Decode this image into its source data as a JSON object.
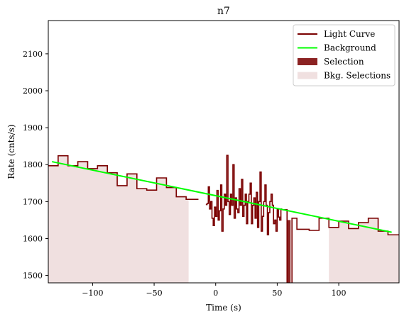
{
  "chart_data": {
    "type": "line",
    "title": "n7",
    "xlabel": "Time (s)",
    "ylabel": "Rate (cnts/s)",
    "xlim": [
      -136,
      149
    ],
    "ylim": [
      1480,
      2190
    ],
    "xticks": [
      -100,
      -50,
      0,
      50,
      100
    ],
    "xtick_labels": [
      "−100",
      "−50",
      "0",
      "50",
      "100"
    ],
    "yticks": [
      1500,
      1600,
      1700,
      1800,
      1900,
      2000,
      2100
    ],
    "ytick_labels": [
      "1500",
      "1600",
      "1700",
      "1800",
      "1900",
      "2000",
      "2100"
    ],
    "grid": false,
    "legend_position": "top-right",
    "colors": {
      "light_curve": "#7a0000",
      "background": "#00ff00",
      "selection": "#8b2222",
      "bkg_selection": "#f0e0e0"
    },
    "legend": [
      {
        "label": "Light Curve",
        "kind": "line",
        "color": "#7a0000"
      },
      {
        "label": "Background",
        "kind": "line",
        "color": "#00ff00"
      },
      {
        "label": "Selection",
        "kind": "patch",
        "color": "#8b2222"
      },
      {
        "label": "Bkg. Selections",
        "kind": "patch",
        "color": "#f0e0e0"
      }
    ],
    "light_curve_bins": [
      {
        "x0": -136,
        "x1": -128,
        "y": 1797
      },
      {
        "x0": -128,
        "x1": -120,
        "y": 1824
      },
      {
        "x0": -120,
        "x1": -112,
        "y": 1797
      },
      {
        "x0": -112,
        "x1": -104,
        "y": 1808
      },
      {
        "x0": -104,
        "x1": -96,
        "y": 1789
      },
      {
        "x0": -96,
        "x1": -88,
        "y": 1797
      },
      {
        "x0": -88,
        "x1": -80,
        "y": 1778
      },
      {
        "x0": -80,
        "x1": -72,
        "y": 1743
      },
      {
        "x0": -72,
        "x1": -64,
        "y": 1775
      },
      {
        "x0": -64,
        "x1": -56,
        "y": 1735
      },
      {
        "x0": -56,
        "x1": -48,
        "y": 1731
      },
      {
        "x0": -48,
        "x1": -40,
        "y": 1764
      },
      {
        "x0": -40,
        "x1": -32,
        "y": 1738
      },
      {
        "x0": -32,
        "x1": -24,
        "y": 1713
      },
      {
        "x0": -24,
        "x1": -14,
        "y": 1706
      }
    ],
    "light_curve_dense": {
      "x0": -8,
      "dx": 1,
      "y": [
        1692,
        1695,
        1740,
        1680,
        1700,
        1655,
        1635,
        1685,
        1660,
        1730,
        1650,
        1675,
        1745,
        1620,
        1680,
        1720,
        1690,
        1825,
        1700,
        1665,
        1720,
        1690,
        1800,
        1655,
        1710,
        1680,
        1670,
        1735,
        1690,
        1760,
        1660,
        1690,
        1720,
        1640,
        1700,
        1720,
        1750,
        1640,
        1690,
        1710,
        1655,
        1725,
        1630,
        1700,
        1780,
        1620,
        1660,
        1700,
        1745,
        1690,
        1610,
        1670,
        1700,
        1720,
        1690,
        1640,
        1650,
        1620,
        1680,
        1658,
        1650,
        1680
      ]
    },
    "light_curve_tail_bins": [
      {
        "x0": 54,
        "x1": 58,
        "y": 1678
      },
      {
        "x0": 58,
        "x1": 62,
        "y": 1420
      },
      {
        "x0": 62,
        "x1": 66,
        "y": 1655
      },
      {
        "x0": 66,
        "x1": 72,
        "y": 1625
      },
      {
        "x0": 72,
        "x1": 76,
        "y": 1625
      },
      {
        "x0": 76,
        "x1": 84,
        "y": 1622
      },
      {
        "x0": 84,
        "x1": 92,
        "y": 1655
      },
      {
        "x0": 92,
        "x1": 100,
        "y": 1630
      },
      {
        "x0": 100,
        "x1": 108,
        "y": 1647
      },
      {
        "x0": 108,
        "x1": 116,
        "y": 1627
      },
      {
        "x0": 116,
        "x1": 124,
        "y": 1643
      },
      {
        "x0": 124,
        "x1": 132,
        "y": 1655
      },
      {
        "x0": 132,
        "x1": 140,
        "y": 1620
      },
      {
        "x0": 140,
        "x1": 149,
        "y": 1610
      }
    ],
    "background_line": {
      "x": [
        -133,
        143
      ],
      "y": [
        1808,
        1617
      ]
    },
    "bkg_selection_regions": [
      [
        -136,
        -22
      ],
      [
        92,
        149
      ]
    ],
    "selection_region": [
      58,
      60
    ]
  }
}
